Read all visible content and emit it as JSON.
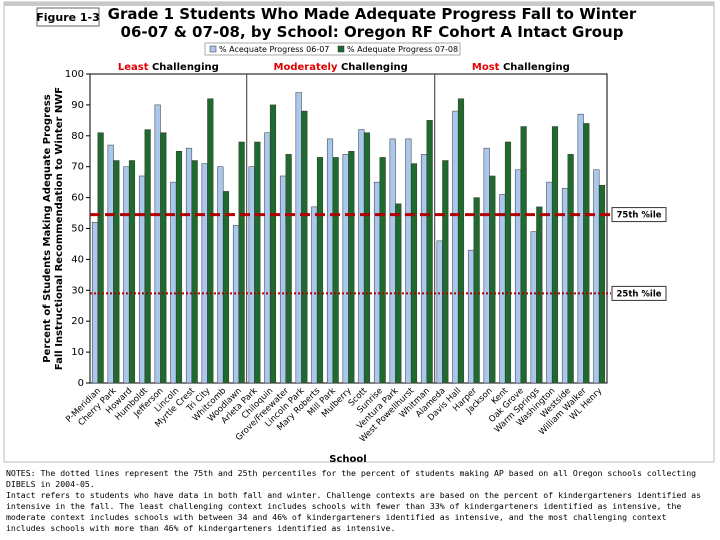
{
  "figure_label": "Figure 1-3",
  "chart_data": {
    "type": "bar",
    "title": [
      "Grade 1 Students Who Made Adequate Progress Fall to Winter",
      "06-07 & 07-08, by School: Oregon RF Cohort A Intact Group"
    ],
    "ylabel": [
      "Percent of Students Making Adequate Progress",
      "Fall Instructional Recommendation to Winter NWF"
    ],
    "xlabel": "School",
    "ylim": [
      0,
      100
    ],
    "yticks": [
      0,
      10,
      20,
      30,
      40,
      50,
      60,
      70,
      80,
      90,
      100
    ],
    "grid": false,
    "legend": "top",
    "groups": [
      {
        "emphasis": "Least",
        "label": "Challenging",
        "color": "#e00000",
        "categories": [
          "P-Meridian",
          "Cherry Park",
          "Howard",
          "Humboldt",
          "Jefferson",
          "Lincoln",
          "Myrtle Crest",
          "Tri City",
          "Whitcomb",
          "Woodlawn"
        ]
      },
      {
        "emphasis": "Moderately",
        "label": "Challenging",
        "color": "#e00000",
        "categories": [
          "Arleta Park",
          "Chiloquin",
          "Grove/Freewater",
          "Lincoln Park",
          "Mary Roberts",
          "Mill Park",
          "Mulberry",
          "Scott",
          "Sunrise",
          "Ventura Park",
          "West Powellhurst",
          "Whitman"
        ]
      },
      {
        "emphasis": "Most",
        "label": "Challenging",
        "color": "#e00000",
        "categories": [
          "Alameda",
          "Davis Hall",
          "Harper",
          "Jackson",
          "Kent",
          "Oak Grove",
          "Warm Springs",
          "Washington",
          "Westside",
          "William Walker",
          "WL Henry"
        ]
      }
    ],
    "series": [
      {
        "name": "% Acequate Progress 06-07",
        "color": "#a9c8ec",
        "values": [
          52,
          77,
          70,
          67,
          90,
          65,
          76,
          71,
          70,
          51,
          70,
          81,
          67,
          94,
          57,
          79,
          74,
          82,
          65,
          79,
          79,
          74,
          46,
          88,
          43,
          76,
          61,
          69,
          49,
          65,
          63,
          87,
          69
        ]
      },
      {
        "name": "% Adequate Progress 07-08",
        "color": "#1f6b2e",
        "values": [
          81,
          72,
          72,
          82,
          81,
          75,
          72,
          92,
          62,
          78,
          78,
          90,
          74,
          88,
          73,
          73,
          75,
          81,
          73,
          58,
          71,
          85,
          72,
          92,
          60,
          67,
          78,
          83,
          57,
          83,
          74,
          84,
          64
        ]
      }
    ],
    "reference_lines": [
      {
        "value": 54.5,
        "label": "75th %ile",
        "color": "#b00000",
        "style": "dashed"
      },
      {
        "value": 29,
        "label": "25th %ile",
        "color": "#b00000",
        "style": "dotted"
      }
    ]
  },
  "notes": [
    "NOTES: The dotted lines represent the 75th and 25th percentiles for the percent of students making AP based on all Oregon schools collecting DIBELS in 2004-05.",
    "Intact refers to students who have data in both fall and winter. Challenge contexts are based on the percent of kindergarteners identified as intensive in the fall. The least challenging context includes schools with fewer than 33% of kindergarteners identified as intensive, the moderate context includes schools with between 34 and 46% of kindergarteners identified as intensive, and the most challenging context includes schools with more than 46% of kindergarteners identified as intensive."
  ]
}
